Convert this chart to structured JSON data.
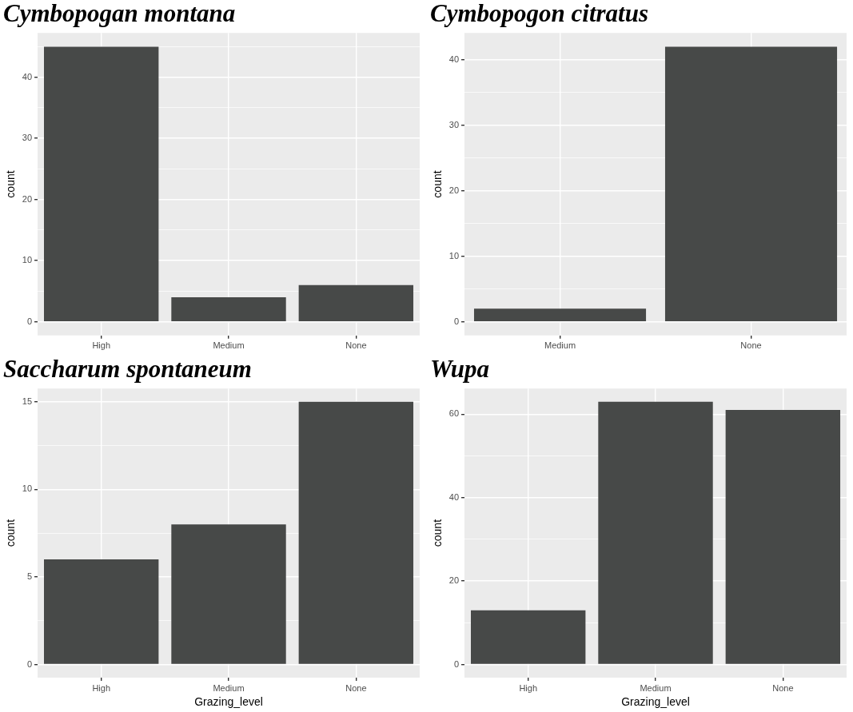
{
  "chart_data": [
    {
      "type": "bar",
      "title": "Cymbopogan montana",
      "categories": [
        "High",
        "Medium",
        "None"
      ],
      "values": [
        45,
        4,
        6
      ],
      "color": "#474948",
      "ylabel": "count",
      "ylim": [
        -2.25,
        47.25
      ],
      "yticks": [
        0,
        {
          "value": 5,
          "label": null
        },
        10,
        {
          "value": 15,
          "label": null
        },
        20,
        {
          "value": 25,
          "label": null
        },
        30,
        {
          "value": 35,
          "label": null
        },
        40,
        {
          "value": 45,
          "label": null
        }
      ],
      "grid": true
    },
    {
      "type": "bar",
      "title": "Cymbopogon citratus",
      "categories": [
        "Medium",
        "None"
      ],
      "values": [
        2,
        42
      ],
      "color": "#474948",
      "ylabel": "count",
      "ylim": [
        -2.1,
        44.1
      ],
      "yticks": [
        0,
        {
          "value": 5,
          "label": null
        },
        10,
        {
          "value": 15,
          "label": null
        },
        20,
        {
          "value": 25,
          "label": null
        },
        30,
        {
          "value": 35,
          "label": null
        },
        40
      ],
      "grid": true
    },
    {
      "type": "bar",
      "title": "Saccharum spontaneum",
      "categories": [
        "High",
        "Medium",
        "None"
      ],
      "values": [
        6,
        8,
        15
      ],
      "color": "#474948",
      "xlabel": "Grazing_level",
      "ylabel": "count",
      "ylim": [
        -0.75,
        15.75
      ],
      "yticks": [
        0,
        {
          "value": 2.5,
          "label": null
        },
        5,
        {
          "value": 7.5,
          "label": null
        },
        10,
        {
          "value": 12.5,
          "label": null
        },
        15
      ],
      "grid": true
    },
    {
      "type": "bar",
      "title": "Wupa",
      "categories": [
        "High",
        "Medium",
        "None"
      ],
      "values": [
        13,
        63,
        61
      ],
      "color": "#474948",
      "xlabel": "Grazing_level",
      "ylabel": "count",
      "ylim": [
        -3.15,
        66.15
      ],
      "yticks": [
        0,
        {
          "value": 10,
          "label": null
        },
        20,
        {
          "value": 30,
          "label": null
        },
        40,
        {
          "value": 50,
          "label": null
        },
        60
      ],
      "grid": true
    }
  ]
}
